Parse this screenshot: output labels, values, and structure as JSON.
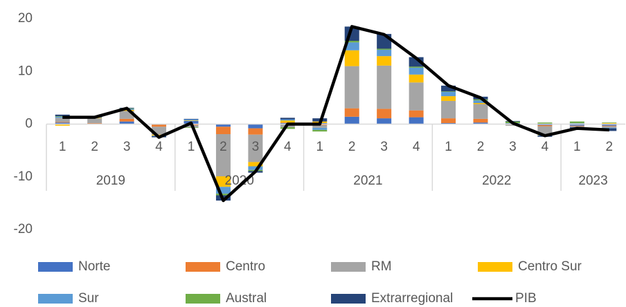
{
  "chart_data": {
    "type": "stacked_bar_line",
    "categories": [
      "1",
      "2",
      "3",
      "4",
      "1",
      "2",
      "3",
      "4",
      "1",
      "2",
      "3",
      "4",
      "1",
      "2",
      "3",
      "4",
      "1",
      "2"
    ],
    "groups": [
      {
        "name": "2019",
        "count": 4
      },
      {
        "name": "2020",
        "count": 4
      },
      {
        "name": "2021",
        "count": 4
      },
      {
        "name": "2022",
        "count": 4
      },
      {
        "name": "2023",
        "count": 2
      }
    ],
    "series": [
      {
        "name": "Norte",
        "color": "#4472c4",
        "kind": "bar",
        "values": [
          0.3,
          0.1,
          0.5,
          -0.1,
          0.6,
          -0.5,
          -0.8,
          0.2,
          0.2,
          1.4,
          1.1,
          1.3,
          0.2,
          0.3,
          0,
          -0.2,
          -0.3,
          -0.3
        ]
      },
      {
        "name": "Centro",
        "color": "#ed7d31",
        "kind": "bar",
        "values": [
          0.1,
          0.1,
          0.5,
          -0.4,
          -0.2,
          -1.4,
          -1.2,
          0.1,
          -0.2,
          1.6,
          1.8,
          1.3,
          0.9,
          0.7,
          -0.1,
          -0.2,
          -0.1,
          -0.1
        ]
      },
      {
        "name": "RM",
        "color": "#a5a5a5",
        "kind": "bar",
        "values": [
          0.8,
          0.9,
          1.5,
          -1.5,
          -0.4,
          -8,
          -5.2,
          -0.6,
          -0.5,
          8,
          8.2,
          5.3,
          3.3,
          2.8,
          -0.2,
          -1.6,
          -0.2,
          -0.3
        ]
      },
      {
        "name": "Centro Sur",
        "color": "#ffc000",
        "kind": "bar",
        "values": [
          -0.3,
          0.1,
          0.2,
          -0.2,
          0.1,
          -2,
          -0.8,
          0.4,
          0.3,
          3,
          1.8,
          1.5,
          0.9,
          0.2,
          0.1,
          -0.1,
          0.1,
          0.2
        ]
      },
      {
        "name": "Sur",
        "color": "#5b9bd5",
        "kind": "bar",
        "values": [
          0.2,
          0.1,
          0.2,
          -0.1,
          0.2,
          -1.3,
          -0.7,
          0.2,
          -0.4,
          1.5,
          1.2,
          1.3,
          0.8,
          0.5,
          0.1,
          -0.1,
          0.1,
          -0.1
        ]
      },
      {
        "name": "Austral",
        "color": "#70ad47",
        "kind": "bar",
        "values": [
          0.1,
          0,
          0.1,
          0,
          -0.1,
          -0.3,
          -0.2,
          -0.3,
          -0.3,
          0.3,
          0.2,
          0.2,
          0.1,
          0.2,
          0.3,
          0.3,
          0.3,
          0.1
        ]
      },
      {
        "name": "Extrarregional",
        "color": "#264478",
        "kind": "bar",
        "values": [
          0.3,
          0.1,
          0.1,
          -0.2,
          0.1,
          -1,
          -0.3,
          0.3,
          0.6,
          2.7,
          2.8,
          1.8,
          1.1,
          0.5,
          0.1,
          -0.2,
          -0.3,
          -0.5
        ]
      },
      {
        "name": "PIB",
        "color": "#000000",
        "kind": "line",
        "values": [
          1.3,
          1.3,
          3.0,
          -2.5,
          0.2,
          -14.5,
          -9.0,
          0.0,
          0.0,
          18.5,
          17.0,
          12.5,
          7.3,
          5.0,
          0.2,
          -2.2,
          -0.8,
          -1.1
        ]
      }
    ],
    "ylim": [
      -20,
      20
    ],
    "yticks": [
      -20,
      -10,
      0,
      10,
      20
    ],
    "grid": false,
    "legend": "bottom"
  }
}
